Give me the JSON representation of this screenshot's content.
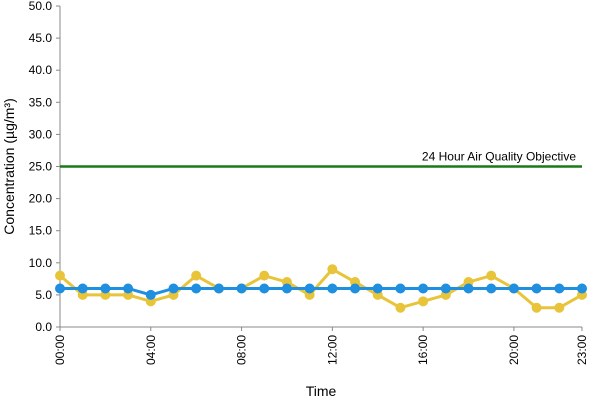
{
  "chart_data": {
    "type": "line",
    "xlabel": "Time",
    "ylabel": "Concentration (µg/m³)",
    "ylim": [
      0,
      50
    ],
    "y_ticks": [
      "0.0",
      "5.0",
      "10.0",
      "15.0",
      "20.0",
      "25.0",
      "30.0",
      "35.0",
      "40.0",
      "45.0",
      "50.0"
    ],
    "x_tick_labels": [
      "00:00",
      "04:00",
      "08:00",
      "12:00",
      "16:00",
      "20:00",
      "23:00"
    ],
    "x_tick_hours": [
      0,
      4,
      8,
      12,
      16,
      20,
      23
    ],
    "x": [
      0,
      1,
      2,
      3,
      4,
      5,
      6,
      7,
      8,
      9,
      10,
      11,
      12,
      13,
      14,
      15,
      16,
      17,
      18,
      19,
      20,
      21,
      22,
      23
    ],
    "grid": false,
    "series": [
      {
        "color": "#e8c43a",
        "values": [
          8,
          5,
          5,
          5,
          4,
          5,
          8,
          6,
          6,
          8,
          7,
          5,
          9,
          7,
          5,
          3,
          4,
          5,
          7,
          8,
          6,
          3,
          3,
          5
        ]
      },
      {
        "color": "#1f8fe0",
        "values": [
          6,
          6,
          6,
          6,
          5,
          6,
          6,
          6,
          6,
          6,
          6,
          6,
          6,
          6,
          6,
          6,
          6,
          6,
          6,
          6,
          6,
          6,
          6,
          6
        ]
      }
    ],
    "reference_line": {
      "label": "24 Hour Air Quality Objective",
      "value": 25,
      "color": "#1a7a1a"
    }
  }
}
